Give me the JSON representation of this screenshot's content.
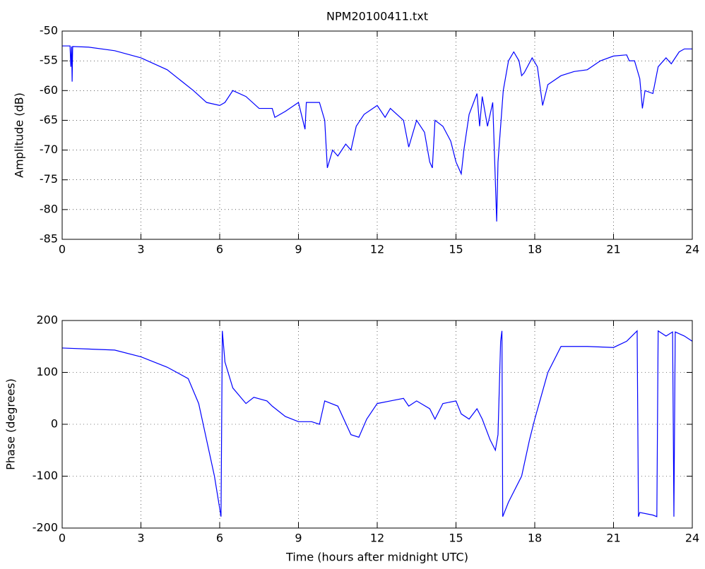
{
  "chart_data": [
    {
      "type": "line",
      "title": "NPM20100411.txt",
      "y_label": "Amplitude (dB)",
      "x": [
        0,
        0.3,
        0.33,
        0.36,
        0.38,
        0.4,
        1,
        2,
        3,
        4,
        5,
        5.5,
        6,
        6.2,
        6.5,
        7,
        7.5,
        8,
        8.1,
        8.5,
        9,
        9.25,
        9.3,
        9.8,
        10,
        10.1,
        10.3,
        10.5,
        10.8,
        11,
        11.2,
        11.5,
        12,
        12.3,
        12.5,
        13,
        13.2,
        13.5,
        13.8,
        14,
        14.1,
        14.2,
        14.5,
        14.8,
        15,
        15.2,
        15.3,
        15.5,
        15.8,
        15.9,
        16,
        16.2,
        16.4,
        16.55,
        16.6,
        16.8,
        17,
        17.2,
        17.4,
        17.5,
        17.6,
        17.9,
        18.1,
        18.3,
        18.5,
        19,
        19.5,
        20,
        20.5,
        21,
        21.5,
        21.6,
        21.8,
        22,
        22.1,
        22.2,
        22.5,
        22.7,
        23,
        23.2,
        23.5,
        23.7,
        24
      ],
      "series": [
        {
          "color": "#0000ff",
          "values": [
            -52.5,
            -52.5,
            -56,
            -52.6,
            -58.5,
            -52.6,
            -52.7,
            -53.3,
            -54.5,
            -56.5,
            -60,
            -62,
            -62.5,
            -62,
            -60,
            -61,
            -63,
            -63,
            -64.5,
            -63.5,
            -62,
            -66.5,
            -62,
            -62,
            -65,
            -73,
            -70,
            -71,
            -69,
            -70,
            -66,
            -64,
            -62.5,
            -64.5,
            -63,
            -65,
            -69.5,
            -65,
            -67,
            -72,
            -73,
            -65,
            -66,
            -68.5,
            -72,
            -74,
            -70,
            -64,
            -60.5,
            -66,
            -61,
            -66,
            -62,
            -82,
            -72,
            -60,
            -55,
            -53.5,
            -55,
            -57.5,
            -57,
            -54.5,
            -56,
            -62.5,
            -59,
            -57.5,
            -56.8,
            -56.5,
            -55,
            -54.2,
            -54,
            -55,
            -55,
            -58,
            -63,
            -60,
            -60.5,
            -56,
            -54.5,
            -55.5,
            -53.5,
            -53,
            -53
          ]
        }
      ],
      "xlim": [
        0,
        24
      ],
      "xticks": [
        0,
        3,
        6,
        9,
        12,
        15,
        18,
        21,
        24
      ],
      "ylim": [
        -85,
        -50
      ],
      "yticks": [
        -85,
        -80,
        -75,
        -70,
        -65,
        -60,
        -55,
        -50
      ],
      "grid": true
    },
    {
      "type": "line",
      "x_label": "Time (hours after midnight UTC)",
      "y_label": "Phase (degrees)",
      "x": [
        0,
        2,
        3,
        4,
        4.8,
        5.2,
        5.5,
        5.8,
        6.05,
        6.1,
        6.2,
        6.5,
        7,
        7.3,
        7.8,
        8,
        8.5,
        9,
        9.5,
        9.8,
        10,
        10.5,
        11,
        11.3,
        11.6,
        12,
        12.5,
        13,
        13.2,
        13.5,
        14,
        14.2,
        14.5,
        15,
        15.2,
        15.5,
        15.8,
        16,
        16.3,
        16.5,
        16.6,
        16.7,
        16.75,
        16.78,
        17,
        17.5,
        17.8,
        18,
        18.5,
        19,
        20,
        21,
        21.5,
        21.9,
        21.95,
        22,
        22.5,
        22.65,
        22.7,
        23,
        23.25,
        23.3,
        23.35,
        23.7,
        24
      ],
      "series": [
        {
          "color": "#0000ff",
          "values": [
            147,
            143,
            130,
            110,
            88,
            40,
            -30,
            -100,
            -178,
            180,
            120,
            70,
            40,
            52,
            45,
            35,
            15,
            5,
            5,
            0,
            45,
            35,
            -20,
            -25,
            10,
            40,
            45,
            50,
            35,
            45,
            30,
            10,
            40,
            45,
            20,
            10,
            30,
            10,
            -30,
            -50,
            -20,
            160,
            180,
            -178,
            -150,
            -100,
            -30,
            10,
            100,
            150,
            150,
            148,
            160,
            180,
            -178,
            -170,
            -175,
            -178,
            180,
            170,
            178,
            -178,
            178,
            170,
            160
          ]
        }
      ],
      "xlim": [
        0,
        24
      ],
      "xticks": [
        0,
        3,
        6,
        9,
        12,
        15,
        18,
        21,
        24
      ],
      "ylim": [
        -200,
        200
      ],
      "yticks": [
        -200,
        -100,
        0,
        100,
        200
      ],
      "grid": true
    }
  ]
}
